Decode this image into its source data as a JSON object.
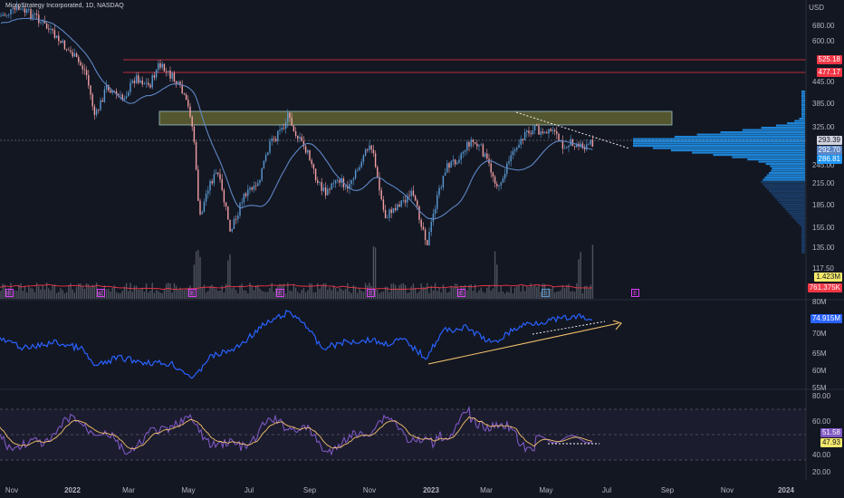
{
  "header": {
    "title": "MicroStrategy Incorporated, 1D, NASDAQ",
    "currency": "USD"
  },
  "price_axis": {
    "ticks": [
      "680.00",
      "600.00",
      "525.18",
      "477.17",
      "445.00",
      "385.00",
      "325.00",
      "293.39",
      "292.70",
      "286.81",
      "245.00",
      "215.00",
      "185.00",
      "155.00",
      "135.00",
      "117.50"
    ]
  },
  "price_tags": {
    "resistance_high": "525.18",
    "resistance_low": "477.17",
    "last_price": "293.39",
    "close_a": "292.70",
    "close_b": "286.81",
    "volume_a": "1.423M",
    "volume_b": "761.375K"
  },
  "obv_axis": {
    "ticks": [
      "80M",
      "70M",
      "65M",
      "60M",
      "55M"
    ],
    "current": "74.915M"
  },
  "rsi_axis": {
    "ticks": [
      "80.00",
      "60.00",
      "40.00",
      "20.00"
    ],
    "rsi": "51.58",
    "signal": "47.93"
  },
  "time_axis": [
    "Nov",
    "2022",
    "Mar",
    "May",
    "Jul",
    "Sep",
    "Nov",
    "2023",
    "Mar",
    "May",
    "Jul",
    "Sep",
    "Nov",
    "2024"
  ],
  "earnings_marker": "E",
  "colors": {
    "background": "#131722",
    "up": "#5b9bd5",
    "down": "#f5a0a5",
    "ma": "#5d86c4",
    "resistance": "#f23645",
    "obv": "#2962ff",
    "rsi": "#7e57c2",
    "rsi_signal": "#f5c26b",
    "volume_profile": "#2196f3"
  }
}
